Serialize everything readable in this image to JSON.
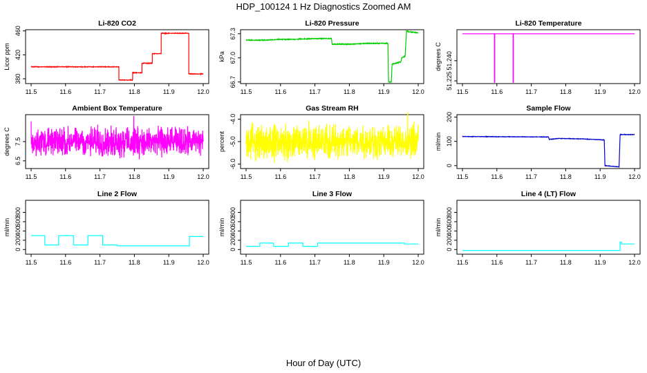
{
  "page": {
    "title": "HDP_100124  1 Hz Diagnostics Zoomed AM",
    "xlabel": "Hour of Day (UTC)"
  },
  "chart_data": [
    {
      "type": "line",
      "title": "Li-820 CO2",
      "ylabel": "Licor ppm",
      "color": "#ff0000",
      "xlim": [
        11.5,
        12.0
      ],
      "ylim": [
        372,
        462
      ],
      "xticks": [
        11.5,
        11.6,
        11.7,
        11.8,
        11.9,
        12.0
      ],
      "xtick_labels": [
        "11.5",
        "11.6",
        "11.7",
        "11.8",
        "11.9",
        "12.0"
      ],
      "yticks": [
        380,
        420,
        460
      ],
      "ytick_labels": [
        "380",
        "420",
        "460"
      ],
      "noise": 0.6,
      "step": true,
      "series": [
        {
          "x": [
            11.5,
            11.755,
            11.755,
            11.795,
            11.795,
            11.822,
            11.822,
            11.852,
            11.852,
            11.878,
            11.878,
            11.958,
            11.958,
            12.0
          ],
          "y": [
            400,
            400,
            378,
            378,
            390,
            390,
            406,
            406,
            422,
            422,
            456,
            456,
            388,
            388
          ]
        }
      ]
    },
    {
      "type": "line",
      "title": "Li-820 Pressure",
      "ylabel": "kPa",
      "color": "#00cc00",
      "xlim": [
        11.5,
        12.0
      ],
      "ylim": [
        66.68,
        67.35
      ],
      "xticks": [
        11.5,
        11.6,
        11.7,
        11.8,
        11.9,
        12.0
      ],
      "xtick_labels": [
        "11.5",
        "11.6",
        "11.7",
        "11.8",
        "11.9",
        "12.0"
      ],
      "yticks": [
        66.7,
        67.0,
        67.3
      ],
      "ytick_labels": [
        "66.7",
        "67.0",
        "67.3"
      ],
      "noise": 0.006,
      "step": true,
      "series": [
        {
          "x": [
            11.5,
            11.55,
            11.6,
            11.64,
            11.7,
            11.748,
            11.75,
            11.8,
            11.85,
            11.912,
            11.914,
            11.922,
            11.924,
            11.95,
            11.952,
            11.962,
            11.966,
            12.0
          ],
          "y": [
            67.22,
            67.22,
            67.23,
            67.23,
            67.24,
            67.24,
            67.17,
            67.17,
            67.18,
            67.18,
            66.7,
            66.7,
            66.92,
            66.95,
            67.0,
            67.02,
            67.33,
            67.31
          ]
        }
      ]
    },
    {
      "type": "line",
      "title": "Li-820 Temperature",
      "ylabel": "degrees C",
      "color": "#ff00ff",
      "xlim": [
        11.5,
        12.0
      ],
      "ylim": [
        51.223,
        51.263
      ],
      "xticks": [
        11.5,
        11.6,
        11.7,
        11.8,
        11.9,
        12.0
      ],
      "xtick_labels": [
        "11.5",
        "11.6",
        "11.7",
        "11.8",
        "11.9",
        "12.0"
      ],
      "yticks": [
        51.225,
        51.24
      ],
      "ytick_labels": [
        "51.225",
        "51.240"
      ],
      "noise": 0,
      "step": true,
      "series": [
        {
          "x": [
            11.5,
            11.593,
            11.593,
            11.594,
            11.594,
            11.647,
            11.647,
            11.648,
            11.648,
            12.0
          ],
          "y": [
            51.26,
            51.26,
            51.224,
            51.224,
            51.26,
            51.26,
            51.224,
            51.224,
            51.26,
            51.26
          ]
        }
      ]
    },
    {
      "type": "line",
      "title": "Ambient Box Temperature",
      "ylabel": "degrees C",
      "color": "#ff00ff",
      "xlim": [
        11.5,
        12.0
      ],
      "ylim": [
        6.1,
        8.9
      ],
      "xticks": [
        11.5,
        11.6,
        11.7,
        11.8,
        11.9,
        12.0
      ],
      "xtick_labels": [
        "11.5",
        "11.6",
        "11.7",
        "11.8",
        "11.9",
        "12.0"
      ],
      "yticks": [
        6.5,
        7.5
      ],
      "ytick_labels": [
        "6.5",
        "7.5"
      ],
      "noise": 0.9,
      "step": false,
      "series": [
        {
          "x": [
            11.5,
            12.0
          ],
          "y": [
            7.5,
            7.5
          ]
        }
      ]
    },
    {
      "type": "line",
      "title": "Gas Stream RH",
      "ylabel": "percent",
      "color": "#ffff00",
      "xlim": [
        11.5,
        12.0
      ],
      "ylim": [
        -6.2,
        -3.8
      ],
      "xticks": [
        11.5,
        11.6,
        11.7,
        11.8,
        11.9,
        12.0
      ],
      "xtick_labels": [
        "11.5",
        "11.6",
        "11.7",
        "11.8",
        "11.9",
        "12.0"
      ],
      "yticks": [
        -6.0,
        -5.0,
        -4.0
      ],
      "ytick_labels": [
        "-6.0",
        "-5.0",
        "-4.0"
      ],
      "noise": 0.9,
      "step": false,
      "series": [
        {
          "x": [
            11.5,
            12.0
          ],
          "y": [
            -5.0,
            -5.0
          ]
        }
      ]
    },
    {
      "type": "line",
      "title": "Sample Flow",
      "ylabel": "ml/min",
      "color": "#0000cc",
      "xlim": [
        11.5,
        12.0
      ],
      "ylim": [
        -12,
        210
      ],
      "xticks": [
        11.5,
        11.6,
        11.7,
        11.8,
        11.9,
        12.0
      ],
      "xtick_labels": [
        "11.5",
        "11.6",
        "11.7",
        "11.8",
        "11.9",
        "12.0"
      ],
      "yticks": [
        0,
        100,
        200
      ],
      "ytick_labels": [
        "0",
        "100",
        "200"
      ],
      "noise": 1.2,
      "step": true,
      "series": [
        {
          "x": [
            11.5,
            11.75,
            11.752,
            11.78,
            11.85,
            11.88,
            11.912,
            11.914,
            11.955,
            11.958,
            12.0
          ],
          "y": [
            120,
            118,
            108,
            112,
            110,
            108,
            106,
            0,
            -5,
            128,
            128
          ]
        }
      ]
    },
    {
      "type": "line",
      "title": "Line 2 Flow",
      "ylabel": "ml/min",
      "color": "#00ffff",
      "xlim": [
        11.5,
        12.0
      ],
      "ylim": [
        -100,
        1060
      ],
      "xticks": [
        11.5,
        11.6,
        11.7,
        11.8,
        11.9,
        12.0
      ],
      "xtick_labels": [
        "11.5",
        "11.6",
        "11.7",
        "11.8",
        "11.9",
        "12.0"
      ],
      "yticks": [
        0,
        200,
        400,
        600,
        800
      ],
      "ytick_labels": [
        "0",
        "200",
        "400",
        "600",
        "800"
      ],
      "noise": 0,
      "step": true,
      "series": [
        {
          "x": [
            11.5,
            11.54,
            11.54,
            11.58,
            11.58,
            11.623,
            11.623,
            11.665,
            11.665,
            11.708,
            11.708,
            11.75,
            11.75,
            11.96,
            11.96,
            12.0
          ],
          "y": [
            300,
            300,
            100,
            100,
            300,
            300,
            100,
            100,
            300,
            300,
            100,
            100,
            80,
            80,
            280,
            280
          ]
        }
      ]
    },
    {
      "type": "line",
      "title": "Line 3 Flow",
      "ylabel": "ml/min",
      "color": "#00ffff",
      "xlim": [
        11.5,
        12.0
      ],
      "ylim": [
        -100,
        1060
      ],
      "xticks": [
        11.5,
        11.6,
        11.7,
        11.8,
        11.9,
        12.0
      ],
      "xtick_labels": [
        "11.5",
        "11.6",
        "11.7",
        "11.8",
        "11.9",
        "12.0"
      ],
      "yticks": [
        0,
        200,
        400,
        600,
        800
      ],
      "ytick_labels": [
        "0",
        "200",
        "400",
        "600",
        "800"
      ],
      "noise": 0,
      "step": true,
      "series": [
        {
          "x": [
            11.5,
            11.54,
            11.54,
            11.58,
            11.58,
            11.623,
            11.623,
            11.665,
            11.665,
            11.708,
            11.708,
            11.96,
            11.96,
            12.0
          ],
          "y": [
            70,
            70,
            140,
            140,
            70,
            70,
            140,
            140,
            70,
            70,
            140,
            140,
            120,
            120
          ]
        }
      ]
    },
    {
      "type": "line",
      "title": "Line 4 (LT) Flow",
      "ylabel": "ml/min",
      "color": "#00ffff",
      "xlim": [
        11.5,
        12.0
      ],
      "ylim": [
        -100,
        1060
      ],
      "xticks": [
        11.5,
        11.6,
        11.7,
        11.8,
        11.9,
        12.0
      ],
      "xtick_labels": [
        "11.5",
        "11.6",
        "11.7",
        "11.8",
        "11.9",
        "12.0"
      ],
      "yticks": [
        0,
        200,
        400,
        600,
        800
      ],
      "ytick_labels": [
        "0",
        "200",
        "400",
        "600",
        "800"
      ],
      "noise": 0,
      "step": true,
      "series": [
        {
          "x": [
            11.5,
            11.958,
            11.958,
            11.962,
            11.962,
            12.0
          ],
          "y": [
            -20,
            -20,
            160,
            160,
            120,
            120
          ]
        }
      ]
    }
  ]
}
